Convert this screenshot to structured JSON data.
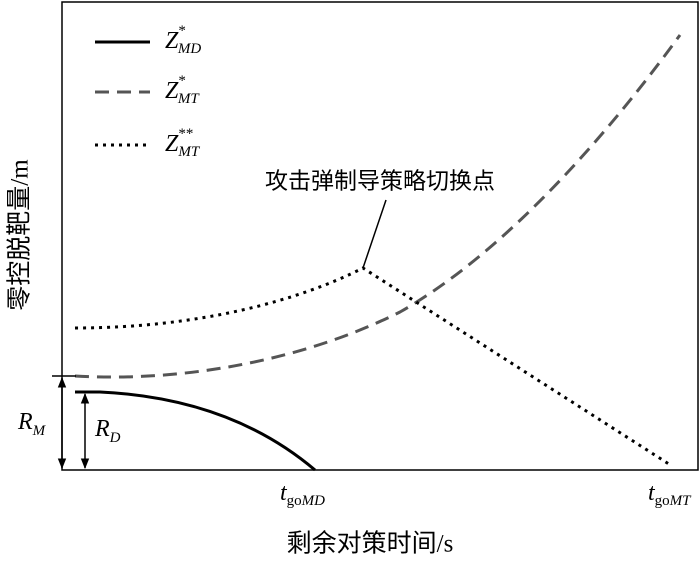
{
  "y_axis_label": "零控脱靶量/m",
  "x_axis_label": "剩余对策时间/s",
  "legend": [
    {
      "symbol": "Z",
      "sup": "*",
      "sub": "MD"
    },
    {
      "symbol": "Z",
      "sup": "*",
      "sub": "MT"
    },
    {
      "symbol": "Z",
      "sup": "**",
      "sub": "MT"
    }
  ],
  "annotation": "攻击弹制导策略切换点",
  "r_labels": [
    {
      "symbol": "R",
      "sub": "M"
    },
    {
      "symbol": "R",
      "sub": "D"
    }
  ],
  "t_labels": [
    {
      "symbol": "t",
      "sub": "go",
      "sub_italic": "MD"
    },
    {
      "symbol": "t",
      "sub": "go",
      "sub_italic": "MT"
    }
  ]
}
